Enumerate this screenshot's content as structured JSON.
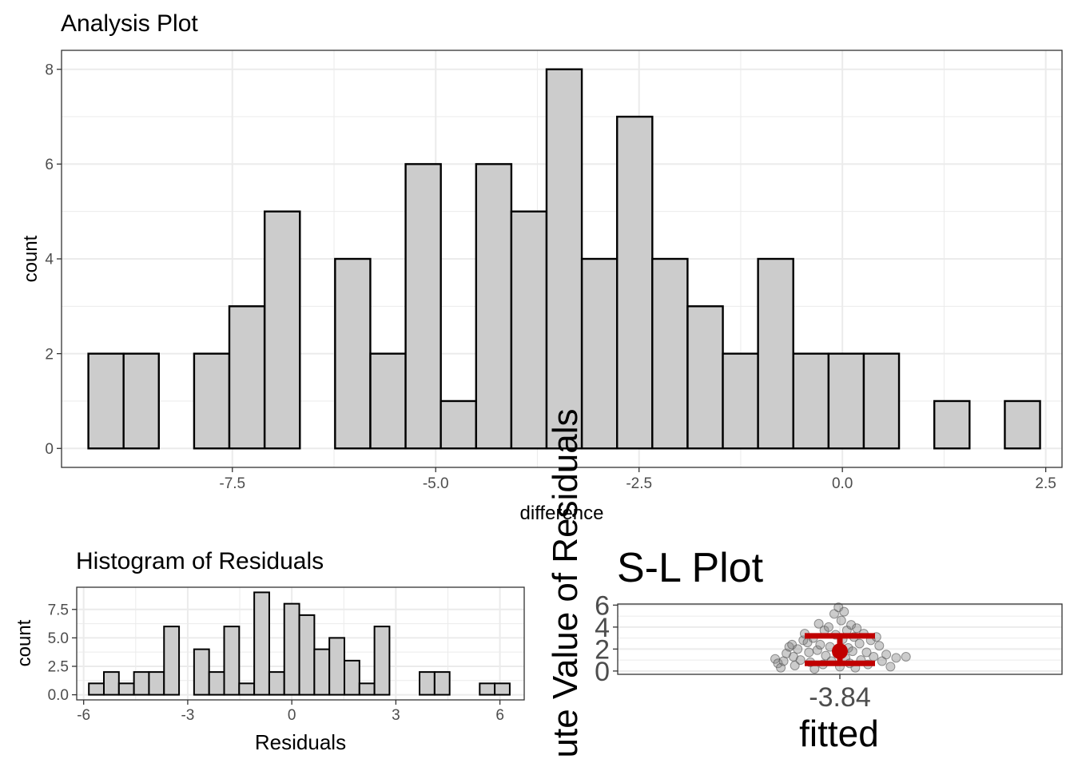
{
  "chart_data": [
    {
      "type": "bar",
      "title": "Analysis Plot",
      "xlabel": "difference",
      "ylabel": "count",
      "xlim": [
        -9.6,
        2.7
      ],
      "ylim": [
        -0.4,
        8.4
      ],
      "x_ticks": [
        -7.5,
        -5.0,
        -2.5,
        0.0,
        2.5
      ],
      "x_tick_labels": [
        "-7.5",
        "-5.0",
        "-2.5",
        "0.0",
        "2.5"
      ],
      "y_ticks": [
        0,
        2,
        4,
        6,
        8
      ],
      "y_tick_labels": [
        "0",
        "2",
        "4",
        "6",
        "8"
      ],
      "bin_width": 0.4333,
      "bin_starts": [
        -9.27,
        -8.837,
        -8.403,
        -7.97,
        -7.537,
        -7.103,
        -6.67,
        -6.237,
        -5.803,
        -5.37,
        -4.937,
        -4.503,
        -4.07,
        -3.637,
        -3.203,
        -2.77,
        -2.337,
        -1.903,
        -1.47,
        -1.037,
        -0.603,
        -0.17,
        0.263,
        0.697,
        1.13,
        1.563,
        1.997
      ],
      "values": [
        2,
        2,
        0,
        2,
        3,
        5,
        0,
        4,
        2,
        6,
        1,
        6,
        5,
        8,
        4,
        7,
        4,
        3,
        2,
        4,
        2,
        2,
        2,
        0,
        1,
        0,
        1
      ],
      "grid": true
    },
    {
      "type": "bar",
      "title": "Histogram of Residuals",
      "xlabel": "Residuals",
      "ylabel": "count",
      "xlim": [
        -6.2,
        6.7
      ],
      "ylim": [
        -0.45,
        9.45
      ],
      "x_ticks": [
        -6,
        -3,
        0,
        3,
        6
      ],
      "x_tick_labels": [
        "-6",
        "-3",
        "0",
        "3",
        "6"
      ],
      "y_ticks": [
        0,
        2.5,
        5,
        7.5
      ],
      "y_tick_labels": [
        "0.0",
        "2.5",
        "5.0",
        "7.5"
      ],
      "bin_width": 0.4333,
      "bin_starts": [
        -5.85,
        -5.417,
        -4.983,
        -4.55,
        -4.117,
        -3.683,
        -3.25,
        -2.817,
        -2.383,
        -1.95,
        -1.517,
        -1.083,
        -0.65,
        -0.217,
        0.217,
        0.65,
        1.083,
        1.517,
        1.95,
        2.383,
        2.817,
        3.25,
        3.683,
        4.117,
        4.55,
        4.983,
        5.417,
        5.85
      ],
      "values": [
        1,
        2,
        1,
        2,
        2,
        6,
        0,
        4,
        2,
        6,
        1,
        9,
        2,
        8,
        7,
        4,
        5,
        3,
        1,
        6,
        0,
        0,
        2,
        2,
        0,
        0,
        1,
        1
      ],
      "grid": true
    },
    {
      "type": "scatter",
      "title": "S-L Plot",
      "xlabel": "fitted",
      "ylabel": "ute Value of Residuals",
      "x_tick_labels": [
        "-3.84"
      ],
      "ylim": [
        -0.3,
        6.1
      ],
      "y_ticks": [
        0,
        2,
        4,
        6
      ],
      "y_tick_labels": [
        "0",
        "2",
        "4",
        "6"
      ],
      "point_color": "#808080",
      "summary_color": "#c00000",
      "mean": 1.8,
      "error_bar": [
        0.7,
        3.2
      ],
      "points": [
        [
          -0.92,
          1.1
        ],
        [
          -0.88,
          0.7
        ],
        [
          -0.84,
          0.3
        ],
        [
          -0.8,
          0.9
        ],
        [
          -0.76,
          1.6
        ],
        [
          -0.72,
          2.2
        ],
        [
          -0.68,
          2.4
        ],
        [
          -0.66,
          1.3
        ],
        [
          -0.64,
          0.5
        ],
        [
          -0.6,
          2.0
        ],
        [
          -0.56,
          1.0
        ],
        [
          -0.52,
          2.8
        ],
        [
          -0.5,
          3.4
        ],
        [
          -0.46,
          2.6
        ],
        [
          -0.44,
          1.7
        ],
        [
          -0.42,
          0.8
        ],
        [
          -0.38,
          3.0
        ],
        [
          -0.36,
          0.2
        ],
        [
          -0.32,
          1.9
        ],
        [
          -0.3,
          4.3
        ],
        [
          -0.28,
          2.4
        ],
        [
          -0.24,
          0.6
        ],
        [
          -0.22,
          3.7
        ],
        [
          -0.2,
          1.4
        ],
        [
          -0.16,
          4.0
        ],
        [
          -0.14,
          2.2
        ],
        [
          -0.12,
          0.9
        ],
        [
          -0.08,
          5.2
        ],
        [
          -0.06,
          3.3
        ],
        [
          -0.04,
          1.6
        ],
        [
          -0.02,
          5.8
        ],
        [
          0.0,
          0.4
        ],
        [
          0.02,
          4.6
        ],
        [
          0.04,
          2.9
        ],
        [
          0.06,
          5.4
        ],
        [
          0.08,
          1.2
        ],
        [
          0.1,
          3.7
        ],
        [
          0.12,
          2.1
        ],
        [
          0.14,
          0.7
        ],
        [
          0.16,
          4.2
        ],
        [
          0.18,
          1.8
        ],
        [
          0.2,
          3.1
        ],
        [
          0.22,
          0.3
        ],
        [
          0.24,
          3.9
        ],
        [
          0.28,
          2.5
        ],
        [
          0.3,
          1.0
        ],
        [
          0.34,
          3.4
        ],
        [
          0.38,
          1.7
        ],
        [
          0.4,
          0.6
        ],
        [
          0.44,
          2.8
        ],
        [
          0.48,
          1.3
        ],
        [
          0.52,
          3.1
        ],
        [
          0.56,
          2.3
        ],
        [
          0.6,
          0.9
        ],
        [
          0.66,
          1.5
        ],
        [
          0.72,
          0.4
        ],
        [
          0.8,
          1.2
        ],
        [
          0.94,
          1.3
        ]
      ],
      "grid": true
    }
  ]
}
